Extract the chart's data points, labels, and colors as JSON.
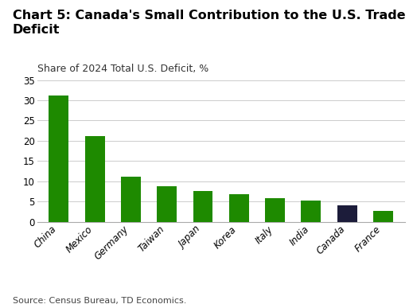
{
  "title": "Chart 5: Canada's Small Contribution to the U.S. Trade\nDeficit",
  "subtitle": "Share of 2024 Total U.S. Deficit, %",
  "source": "Source: Census Bureau, TD Economics.",
  "categories": [
    "China",
    "Mexico",
    "Germany",
    "Taiwan",
    "Japan",
    "Korea",
    "Italy",
    "India",
    "Canada",
    "France"
  ],
  "values": [
    31.1,
    21.2,
    11.1,
    8.7,
    7.5,
    6.8,
    5.9,
    5.2,
    4.0,
    2.7
  ],
  "bar_colors": [
    "#1e8a00",
    "#1e8a00",
    "#1e8a00",
    "#1e8a00",
    "#1e8a00",
    "#1e8a00",
    "#1e8a00",
    "#1e8a00",
    "#1c1c3a",
    "#1e8a00"
  ],
  "ylim": [
    0,
    35
  ],
  "yticks": [
    0,
    5,
    10,
    15,
    20,
    25,
    30,
    35
  ],
  "background_color": "#ffffff",
  "title_fontsize": 11.5,
  "subtitle_fontsize": 9,
  "source_fontsize": 8,
  "tick_fontsize": 8.5,
  "bar_width": 0.55
}
